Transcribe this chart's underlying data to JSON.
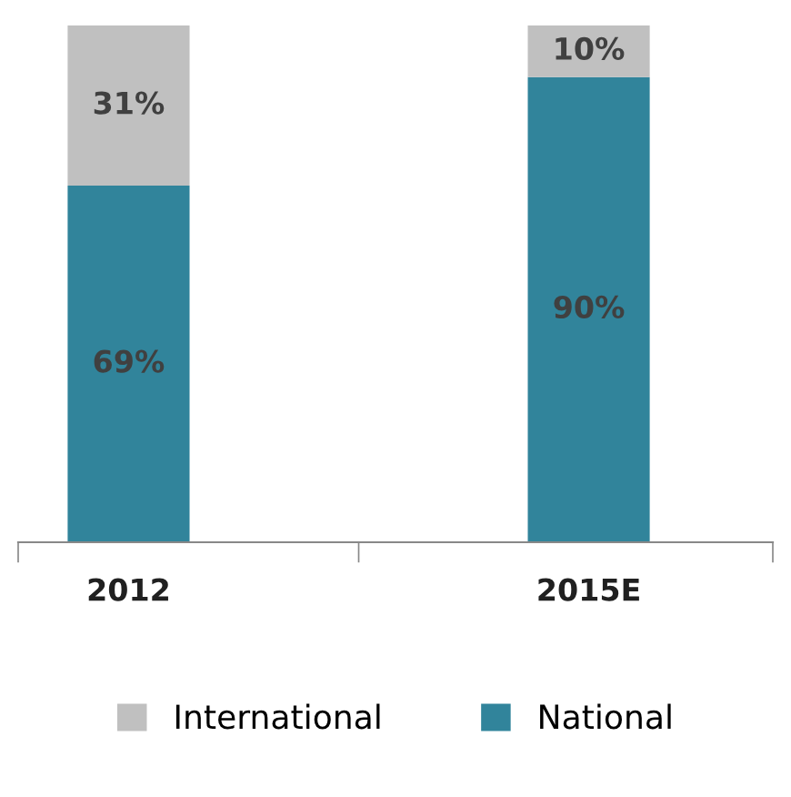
{
  "chart_data": {
    "type": "bar",
    "stacked": true,
    "categories": [
      "2012",
      "2015E"
    ],
    "series": [
      {
        "name": "National",
        "color": "#31849b",
        "values": [
          69,
          90
        ],
        "value_labels": [
          "69%",
          "90%"
        ]
      },
      {
        "name": "International",
        "color": "#c0c0c0",
        "values": [
          31,
          10
        ],
        "value_labels": [
          "31%",
          "10%"
        ]
      }
    ],
    "legend": "bottom",
    "grid": false
  }
}
